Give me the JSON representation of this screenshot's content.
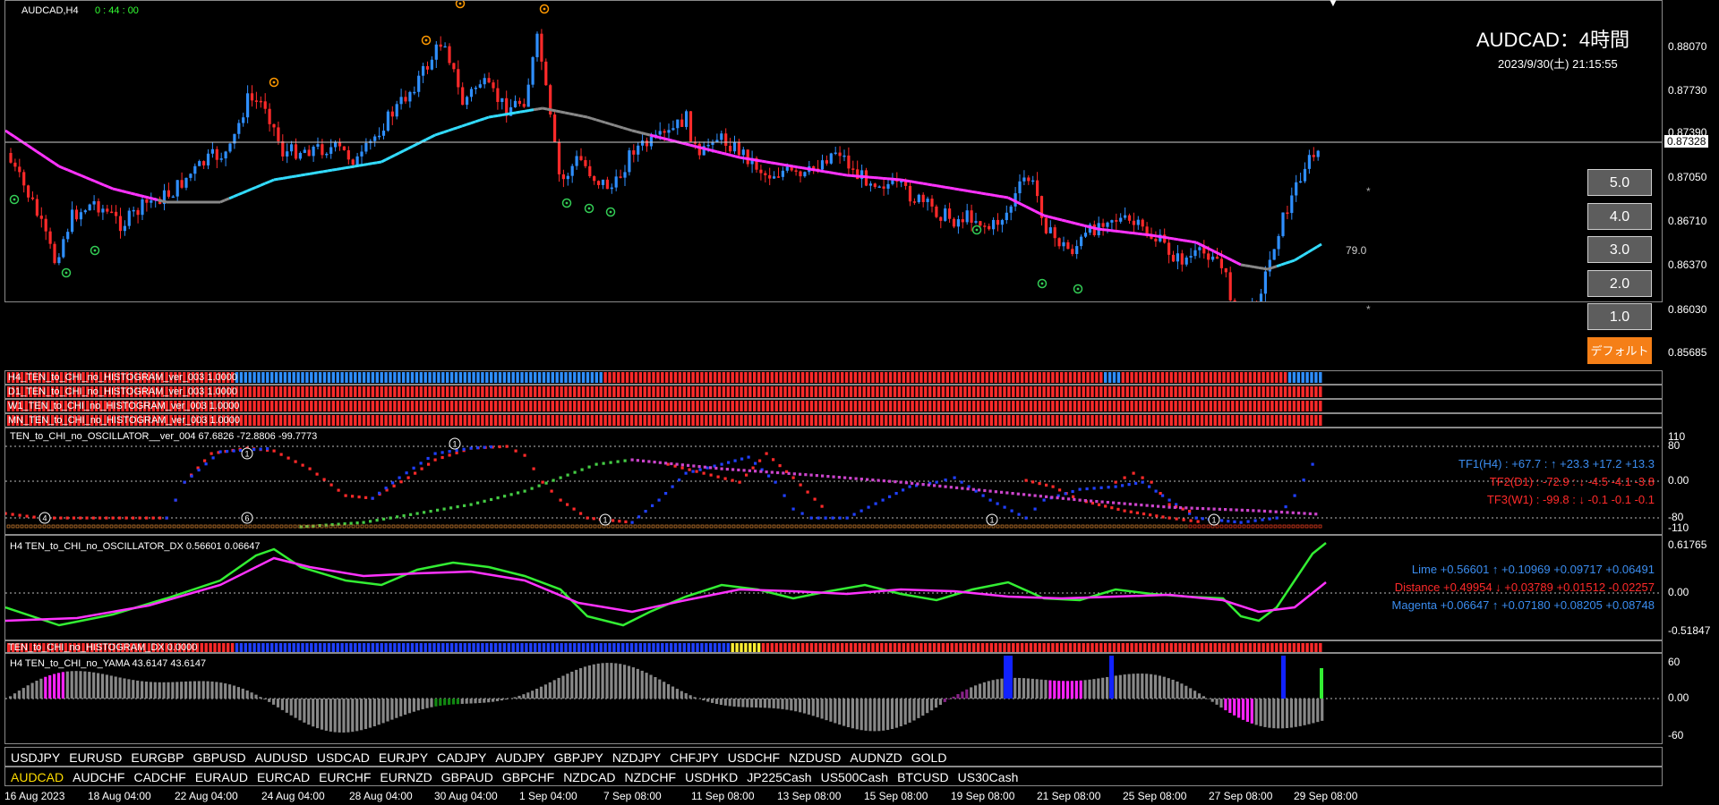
{
  "main": {
    "symbol_label": "AUDCAD,H4",
    "timer": "0 : 44 : 00",
    "title": "AUDCAD：4時間",
    "datetime": "2023/9/30(土) 21:15:55",
    "current_price": "0.87328",
    "value_label": "79.0",
    "prices": [
      "0.88070",
      "0.87730",
      "0.87390",
      "0.87050",
      "0.86710",
      "0.86370",
      "0.86030",
      "0.85685"
    ],
    "buttons": [
      "5.0",
      "4.0",
      "3.0",
      "2.0",
      "1.0"
    ],
    "default_button": "デフォルト",
    "colors": {
      "bull": "#2f8fff",
      "bear": "#ff2a2a",
      "ma_up": "#33ddff",
      "ma_down": "#ff33ff",
      "ma_flat": "#888888"
    }
  },
  "histograms": [
    {
      "label": "H4_TEN_to_CHI_no_HISTOGRAM_ver_003 1.0000"
    },
    {
      "label": "D1_TEN_to_CHI_no_HISTOGRAM_ver_003 1.0000"
    },
    {
      "label": "W1_TEN_to_CHI_no_HISTOGRAM_ver_003 1.0000"
    },
    {
      "label": "MN_TEN_to_CHI_no_HISTOGRAM_ver_003 1.0000"
    }
  ],
  "oscillator": {
    "label": "TEN_to_CHI_no_OSCILLATOR__ver_004 67.6826 -72.8806 -99.7773",
    "scale": [
      "110",
      "80",
      "0.00",
      "-80",
      "-110"
    ],
    "tf1": "TF1(H4) : +67.7 : ↑  +23.3 +17.2 +13.3",
    "tf2": "TF2(D1) : -72.9 : ↓  -4.5 -4.1 -3.8",
    "tf3": "TF3(W1) : -99.8 : ↓  -0.1 -0.1 -0.1"
  },
  "dx": {
    "label": "H4 TEN_to_CHI_no_OSCILLATOR_DX  0.56601 0.06647",
    "scale": [
      "0.61765",
      "0.00",
      "-0.51847"
    ],
    "lime": "Lime +0.56601 ↑  +0.10969 +0.09717 +0.06491",
    "distance": "Distance +0.49954 ↓  +0.03789 +0.01512 -0.02257",
    "magenta": "Magenta +0.06647 ↑  +0.07180 +0.08205 +0.08748"
  },
  "dx_hist": {
    "label": "TEN_to_CHI_no_HISTOGRAM_DX 0.0000"
  },
  "yama": {
    "label": "H4  TEN_to_CHI_no_YAMA  43.6147 43.6147",
    "scale": [
      "60",
      "0.00",
      "-60"
    ]
  },
  "pairs_row1": [
    "USDJPY",
    "EURUSD",
    "EURGBP",
    "GBPUSD",
    "AUDUSD",
    "USDCAD",
    "EURJPY",
    "CADJPY",
    "AUDJPY",
    "GBPJPY",
    "NZDJPY",
    "CHFJPY",
    "USDCHF",
    "NZDUSD",
    "AUDNZD",
    "GOLD"
  ],
  "pairs_row2": [
    "AUDCAD",
    "AUDCHF",
    "CADCHF",
    "EURAUD",
    "EURCAD",
    "EURCHF",
    "EURNZD",
    "GBPAUD",
    "GBPCHF",
    "NZDCAD",
    "NZDCHF",
    "USDHKD",
    "JP225Cash",
    "US500Cash",
    "BTCUSD",
    "US30Cash"
  ],
  "time_axis": [
    "16 Aug 2023",
    "18 Aug 04:00",
    "22 Aug 04:00",
    "24 Aug 04:00",
    "28 Aug 04:00",
    "30 Aug 04:00",
    "1 Sep 04:00",
    "7 Sep 08:00",
    "11 Sep 08:00",
    "13 Sep 08:00",
    "15 Sep 08:00",
    "19 Sep 08:00",
    "21 Sep 08:00",
    "25 Sep 08:00",
    "27 Sep 08:00",
    "29 Sep 08:00"
  ]
}
